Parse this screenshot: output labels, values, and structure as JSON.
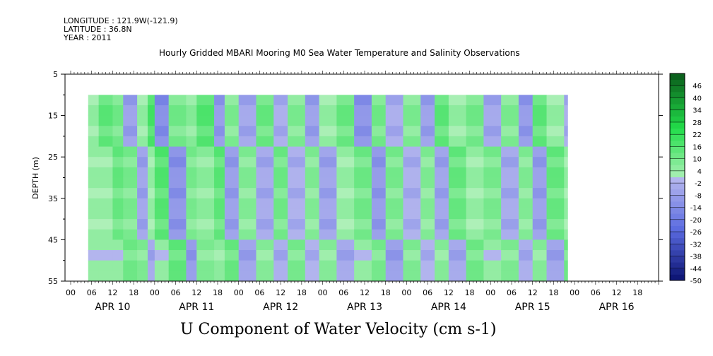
{
  "header": {
    "longitude": "LONGITUDE : 121.9W(-121.9)",
    "latitude": "LATITUDE : 36.8N",
    "year": "YEAR : 2011"
  },
  "chart_data": {
    "type": "heatmap",
    "title": "Hourly Gridded MBARI Mooring M0 Sea Water Temperature and Salinity Observations",
    "xlabel": "U Component of Water Velocity (cm s-1)",
    "ylabel": "DEPTH (m)",
    "y_ticks": [
      5,
      15,
      25,
      35,
      45,
      55
    ],
    "ylim": [
      5,
      55
    ],
    "y_reversed": true,
    "hour_ticks": [
      "00",
      "06",
      "12",
      "18",
      "00",
      "06",
      "12",
      "18",
      "00",
      "06",
      "12",
      "18",
      "00",
      "06",
      "12",
      "18",
      "00",
      "06",
      "12",
      "18",
      "00",
      "06",
      "12",
      "18",
      "00",
      "06",
      "12",
      "18"
    ],
    "day_labels": [
      "APR 10",
      "APR 11",
      "APR 12",
      "APR 13",
      "APR 14",
      "APR 15",
      "APR 16"
    ],
    "data_depth_range_m": [
      10,
      55
    ],
    "data_time_range_hours_from_apr10": [
      5,
      141
    ],
    "colorbar": {
      "labels": [
        "46",
        "40",
        "34",
        "28",
        "22",
        "16",
        "10",
        "4",
        "-2",
        "-8",
        "-14",
        "-20",
        "-26",
        "-32",
        "-38",
        "-44",
        "-50"
      ],
      "min": -50,
      "max": 52,
      "step": 3
    },
    "colors": {
      "positive_max": "#0a5a1a",
      "positive_mid": "#22dd4a",
      "positive_low": "#aef0b8",
      "negative_low": "#b4b6ee",
      "negative_mid": "#5a6ae0",
      "negative_max": "#0a1270"
    },
    "velocity_columns": [
      {
        "hour": 5,
        "value": 4
      },
      {
        "hour": 8,
        "value": 14
      },
      {
        "hour": 12,
        "value": 10
      },
      {
        "hour": 15,
        "value": -8
      },
      {
        "hour": 19,
        "value": 4
      },
      {
        "hour": 22,
        "value": 18
      },
      {
        "hour": 24,
        "value": -14
      },
      {
        "hour": 28,
        "value": 10
      },
      {
        "hour": 33,
        "value": 6
      },
      {
        "hour": 36,
        "value": 16
      },
      {
        "hour": 41,
        "value": -10
      },
      {
        "hour": 44,
        "value": 8
      },
      {
        "hour": 48,
        "value": -6
      },
      {
        "hour": 53,
        "value": 12
      },
      {
        "hour": 58,
        "value": -4
      },
      {
        "hour": 62,
        "value": 8
      },
      {
        "hour": 67,
        "value": -8
      },
      {
        "hour": 71,
        "value": 4
      },
      {
        "hour": 76,
        "value": 12
      },
      {
        "hour": 81,
        "value": -12
      },
      {
        "hour": 86,
        "value": 10
      },
      {
        "hour": 90,
        "value": -4
      },
      {
        "hour": 95,
        "value": 8
      },
      {
        "hour": 100,
        "value": -8
      },
      {
        "hour": 104,
        "value": 14
      },
      {
        "hour": 108,
        "value": 4
      },
      {
        "hour": 113,
        "value": 10
      },
      {
        "hour": 118,
        "value": -6
      },
      {
        "hour": 123,
        "value": 8
      },
      {
        "hour": 128,
        "value": -10
      },
      {
        "hour": 132,
        "value": 14
      },
      {
        "hour": 136,
        "value": 4
      },
      {
        "hour": 141,
        "value": -4
      }
    ]
  }
}
